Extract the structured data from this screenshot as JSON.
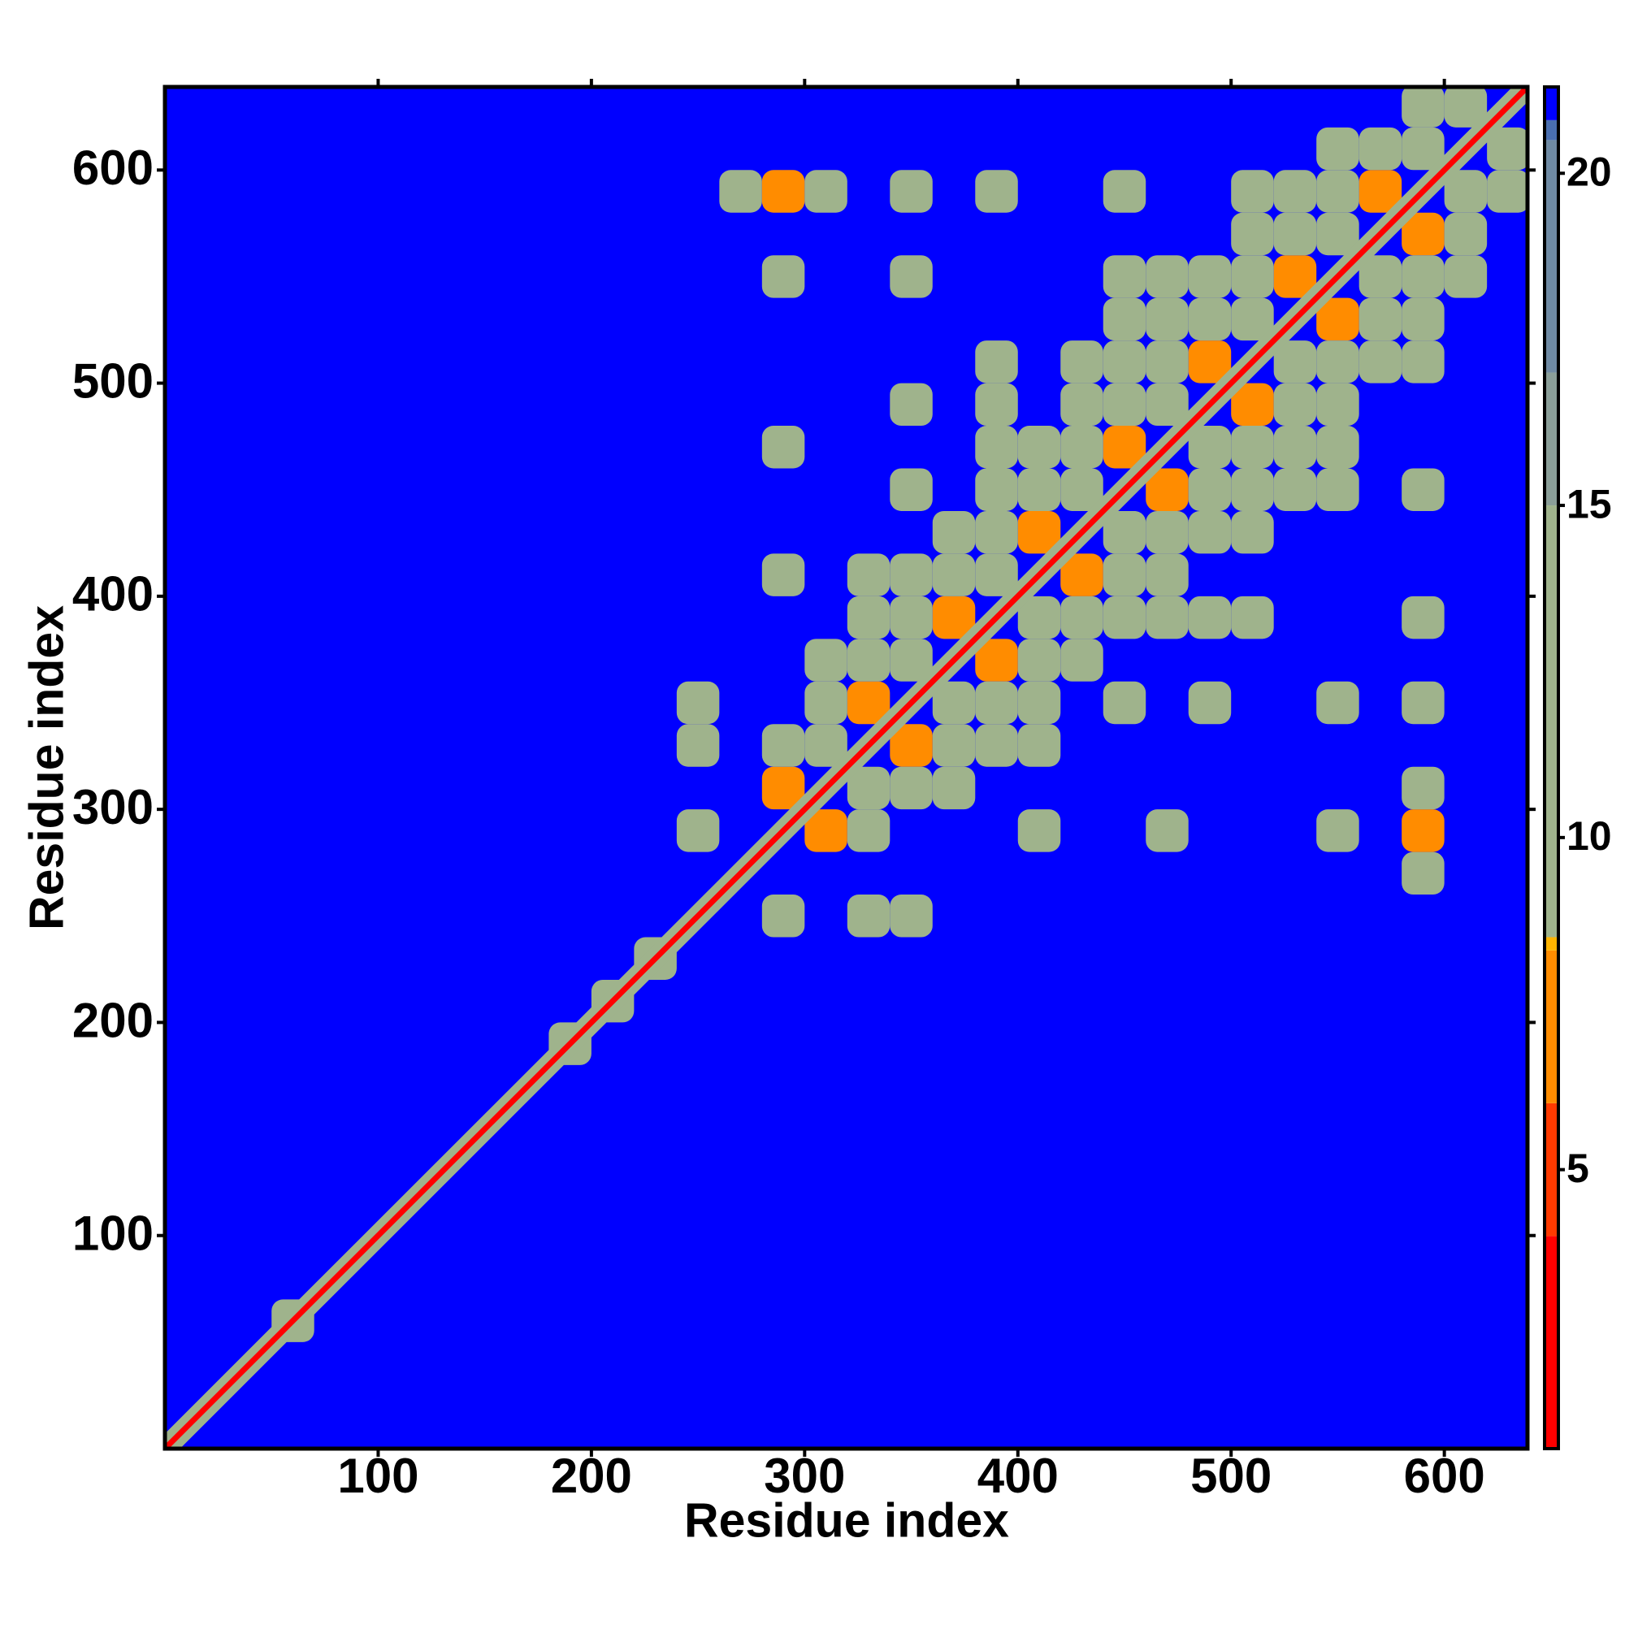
{
  "chart_data": {
    "type": "heatmap",
    "xlabel": "Residue index",
    "ylabel": "Residue index",
    "xlim": [
      0,
      639
    ],
    "ylim": [
      0,
      639
    ],
    "xticks": [
      100,
      200,
      300,
      400,
      500,
      600
    ],
    "yticks": [
      100,
      200,
      300,
      400,
      500,
      600
    ],
    "clim": [
      0.8,
      21.3
    ],
    "cticks": [
      5,
      10,
      15,
      20
    ],
    "colorscale": [
      {
        "value": 0.8,
        "color": "#ff0000"
      },
      {
        "value": 4,
        "color": "#ff3a00"
      },
      {
        "value": 6,
        "color": "#ff8c00"
      },
      {
        "value": 8.3,
        "color": "#ffb400"
      },
      {
        "value": 8.5,
        "color": "#9fb38c"
      },
      {
        "value": 15,
        "color": "#8a9e98"
      },
      {
        "value": 17,
        "color": "#6f8aa3"
      },
      {
        "value": 20.5,
        "color": "#4a6fb0"
      },
      {
        "value": 20.8,
        "color": "#0000ff"
      }
    ],
    "background_value": 21,
    "diagonal": {
      "value": 1.5,
      "halo_value": 11,
      "halo_width": 10
    },
    "symmetric": true,
    "cell_size": 20,
    "cells": [
      [
        50,
        50,
        11
      ],
      [
        180,
        180,
        11
      ],
      [
        200,
        200,
        11
      ],
      [
        220,
        220,
        11
      ],
      [
        280,
        300,
        6
      ],
      [
        300,
        320,
        11
      ],
      [
        320,
        340,
        6
      ],
      [
        340,
        360,
        11
      ],
      [
        360,
        380,
        6
      ],
      [
        380,
        400,
        11
      ],
      [
        400,
        420,
        6
      ],
      [
        420,
        440,
        11
      ],
      [
        440,
        460,
        6
      ],
      [
        460,
        480,
        11
      ],
      [
        480,
        500,
        6
      ],
      [
        500,
        520,
        11
      ],
      [
        520,
        540,
        6
      ],
      [
        540,
        560,
        11
      ],
      [
        560,
        580,
        6
      ],
      [
        580,
        600,
        11
      ],
      [
        600,
        620,
        11
      ],
      [
        280,
        320,
        11
      ],
      [
        300,
        340,
        11
      ],
      [
        320,
        360,
        11
      ],
      [
        340,
        380,
        11
      ],
      [
        360,
        400,
        11
      ],
      [
        380,
        420,
        11
      ],
      [
        400,
        440,
        11
      ],
      [
        420,
        460,
        11
      ],
      [
        440,
        480,
        11
      ],
      [
        460,
        500,
        11
      ],
      [
        480,
        520,
        11
      ],
      [
        500,
        540,
        11
      ],
      [
        520,
        560,
        11
      ],
      [
        540,
        580,
        11
      ],
      [
        560,
        600,
        11
      ],
      [
        580,
        620,
        11
      ],
      [
        300,
        360,
        11
      ],
      [
        320,
        380,
        11
      ],
      [
        340,
        400,
        11
      ],
      [
        360,
        420,
        11
      ],
      [
        380,
        440,
        11
      ],
      [
        400,
        460,
        11
      ],
      [
        420,
        480,
        11
      ],
      [
        440,
        500,
        11
      ],
      [
        460,
        520,
        11
      ],
      [
        480,
        540,
        11
      ],
      [
        500,
        560,
        11
      ],
      [
        520,
        580,
        11
      ],
      [
        540,
        600,
        11
      ],
      [
        320,
        400,
        11
      ],
      [
        380,
        460,
        11
      ],
      [
        420,
        500,
        11
      ],
      [
        460,
        540,
        11
      ],
      [
        500,
        580,
        11
      ],
      [
        260,
        580,
        11
      ],
      [
        280,
        580,
        6
      ],
      [
        300,
        580,
        11
      ],
      [
        340,
        580,
        11
      ],
      [
        380,
        580,
        11
      ],
      [
        440,
        580,
        11
      ],
      [
        280,
        540,
        11
      ],
      [
        280,
        460,
        11
      ],
      [
        280,
        400,
        11
      ],
      [
        240,
        280,
        11
      ],
      [
        240,
        320,
        11
      ],
      [
        240,
        340,
        11
      ],
      [
        380,
        480,
        11
      ],
      [
        380,
        500,
        11
      ],
      [
        440,
        520,
        11
      ],
      [
        440,
        540,
        11
      ],
      [
        340,
        440,
        11
      ],
      [
        340,
        480,
        11
      ],
      [
        340,
        540,
        11
      ]
    ]
  }
}
